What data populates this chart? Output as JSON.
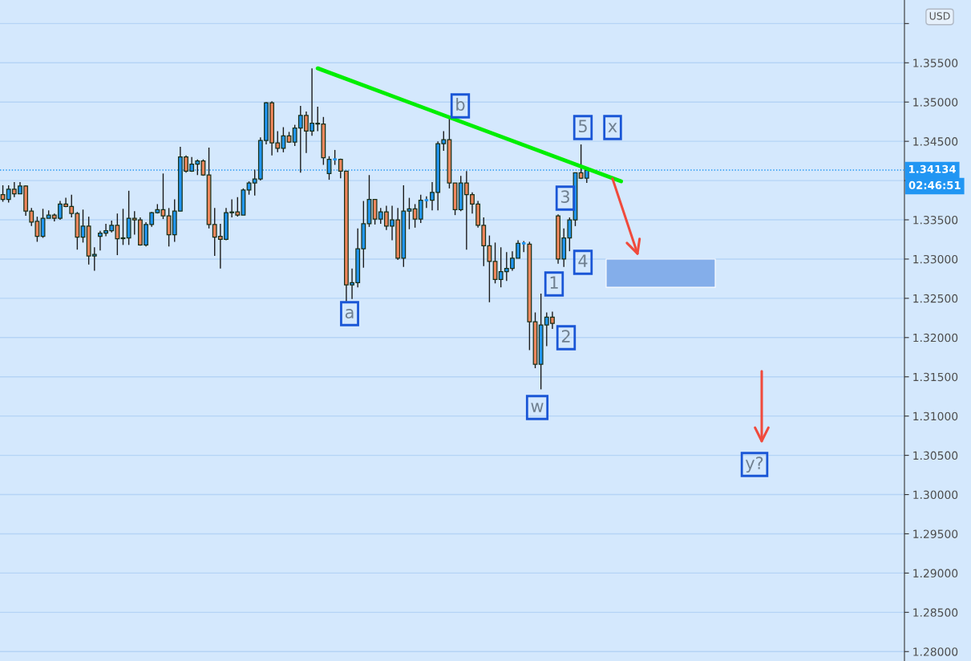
{
  "chart_data": {
    "type": "candlestick",
    "categories": [
      null,
      null,
      null,
      null,
      null,
      null,
      null,
      null,
      null,
      null,
      null,
      null,
      null,
      null,
      null,
      null,
      null,
      null,
      null,
      null,
      null,
      null,
      null,
      null,
      null,
      null,
      null,
      null,
      null,
      null,
      null,
      null,
      null,
      null,
      null,
      null,
      null,
      null,
      null,
      null,
      null,
      null,
      null,
      null,
      null,
      null,
      null,
      null,
      null,
      null,
      null,
      null,
      null,
      null,
      null,
      null,
      null,
      null,
      null,
      null,
      null,
      null,
      null,
      null,
      null,
      null,
      null,
      null,
      null,
      null,
      null,
      null,
      null,
      null,
      null,
      null,
      null,
      null,
      null,
      null,
      null,
      null,
      null,
      null,
      null,
      null,
      null,
      null,
      null,
      null,
      null,
      null,
      null,
      null,
      null,
      null,
      null,
      null,
      null,
      null,
      null,
      null,
      null,
      null,
      null,
      null,
      null,
      null,
      null,
      null,
      null,
      null,
      null,
      null,
      null,
      null,
      null,
      null,
      null,
      null,
      null,
      null,
      null,
      null,
      null,
      null,
      null,
      null,
      null,
      null,
      null,
      null,
      null,
      null,
      null,
      null,
      null,
      null,
      null,
      null,
      null,
      null,
      null,
      null,
      null,
      null,
      null,
      null,
      null,
      null,
      null,
      null,
      null,
      null,
      null,
      null,
      null,
      null
    ],
    "ohlc": [
      [
        1.3382,
        1.3394,
        1.3373,
        1.3376
      ],
      [
        1.3376,
        1.3394,
        1.3372,
        1.3389
      ],
      [
        1.3389,
        1.3398,
        1.3379,
        1.3383
      ],
      [
        1.3383,
        1.3398,
        1.3383,
        1.3393
      ],
      [
        1.3393,
        1.3394,
        1.3355,
        1.3361
      ],
      [
        1.3361,
        1.3365,
        1.3342,
        1.3347
      ],
      [
        1.3348,
        1.3354,
        1.3322,
        1.3329
      ],
      [
        1.3329,
        1.3364,
        1.3327,
        1.3352
      ],
      [
        1.3352,
        1.3362,
        1.3352,
        1.3356
      ],
      [
        1.3356,
        1.3358,
        1.3348,
        1.3352
      ],
      [
        1.3352,
        1.3374,
        1.335,
        1.337
      ],
      [
        1.337,
        1.3378,
        1.3366,
        1.3367
      ],
      [
        1.3367,
        1.3382,
        1.3353,
        1.3358
      ],
      [
        1.3358,
        1.336,
        1.3312,
        1.3328
      ],
      [
        1.3328,
        1.3363,
        1.3321,
        1.3342
      ],
      [
        1.3342,
        1.3354,
        1.3293,
        1.3304
      ],
      [
        1.3304,
        1.3315,
        1.3285,
        1.3306
      ],
      [
        1.3329,
        1.3336,
        1.3311,
        1.3333
      ],
      [
        1.3333,
        1.3345,
        1.3329,
        1.3336
      ],
      [
        1.3336,
        1.3349,
        1.3334,
        1.3343
      ],
      [
        1.3343,
        1.3358,
        1.3305,
        1.3326
      ],
      [
        1.3326,
        1.3364,
        1.3318,
        1.3327
      ],
      [
        1.3327,
        1.3387,
        1.3318,
        1.3352
      ],
      [
        1.3352,
        1.3361,
        1.3331,
        1.335
      ],
      [
        1.335,
        1.3353,
        1.3317,
        1.3318
      ],
      [
        1.3318,
        1.3347,
        1.3316,
        1.3344
      ],
      [
        1.3344,
        1.336,
        1.3341,
        1.3359
      ],
      [
        1.3359,
        1.337,
        1.3358,
        1.3363
      ],
      [
        1.3363,
        1.3409,
        1.3351,
        1.3355
      ],
      [
        1.3355,
        1.3365,
        1.3316,
        1.3331
      ],
      [
        1.3331,
        1.3376,
        1.3322,
        1.3361
      ],
      [
        1.3361,
        1.3443,
        1.3361,
        1.343
      ],
      [
        1.343,
        1.3432,
        1.341,
        1.3412
      ],
      [
        1.3412,
        1.343,
        1.3411,
        1.3421
      ],
      [
        1.3421,
        1.3427,
        1.3407,
        1.3425
      ],
      [
        1.3425,
        1.3427,
        1.3406,
        1.3407
      ],
      [
        1.3407,
        1.3442,
        1.3339,
        1.3344
      ],
      [
        1.3344,
        1.3365,
        1.3304,
        1.3328
      ],
      [
        1.3329,
        1.3345,
        1.3288,
        1.3325
      ],
      [
        1.3325,
        1.3365,
        1.3324,
        1.3359
      ],
      [
        1.3359,
        1.3376,
        1.3353,
        1.336
      ],
      [
        1.336,
        1.3379,
        1.3354,
        1.3356
      ],
      [
        1.3356,
        1.339,
        1.3356,
        1.3388
      ],
      [
        1.3388,
        1.3399,
        1.3382,
        1.3397
      ],
      [
        1.3397,
        1.3414,
        1.3381,
        1.3402
      ],
      [
        1.3402,
        1.3455,
        1.34,
        1.3451
      ],
      [
        1.3451,
        1.35,
        1.3446,
        1.3499
      ],
      [
        1.3499,
        1.3501,
        1.3432,
        1.3448
      ],
      [
        1.3448,
        1.3463,
        1.3436,
        1.3441
      ],
      [
        1.3441,
        1.3468,
        1.3436,
        1.3457
      ],
      [
        1.3457,
        1.3462,
        1.3448,
        1.3449
      ],
      [
        1.3449,
        1.3471,
        1.3444,
        1.3467
      ],
      [
        1.3467,
        1.3495,
        1.341,
        1.3483
      ],
      [
        1.3483,
        1.3488,
        1.3435,
        1.3463
      ],
      [
        1.3463,
        1.3543,
        1.3457,
        1.3473
      ],
      [
        1.3472,
        1.3494,
        1.3463,
        1.3473
      ],
      [
        1.3472,
        1.3481,
        1.342,
        1.3429
      ],
      [
        1.3409,
        1.3431,
        1.3401,
        1.3427
      ],
      [
        1.3427,
        1.3439,
        1.342,
        1.3427
      ],
      [
        1.3427,
        1.3428,
        1.3403,
        1.3412
      ],
      [
        1.3412,
        1.3412,
        1.3246,
        1.3267
      ],
      [
        1.3267,
        1.3288,
        1.3249,
        1.327
      ],
      [
        1.327,
        1.3339,
        1.3264,
        1.3313
      ],
      [
        1.3313,
        1.3374,
        1.3289,
        1.3345
      ],
      [
        1.3345,
        1.3407,
        1.3341,
        1.3376
      ],
      [
        1.3376,
        1.3376,
        1.3344,
        1.3351
      ],
      [
        1.3351,
        1.3365,
        1.3345,
        1.336
      ],
      [
        1.336,
        1.3368,
        1.3337,
        1.3342
      ],
      [
        1.3342,
        1.3368,
        1.3324,
        1.335
      ],
      [
        1.335,
        1.3365,
        1.3299,
        1.3301
      ],
      [
        1.3301,
        1.3394,
        1.329,
        1.3361
      ],
      [
        1.3361,
        1.3378,
        1.3338,
        1.3364
      ],
      [
        1.3364,
        1.337,
        1.334,
        1.3351
      ],
      [
        1.3351,
        1.3382,
        1.3346,
        1.3375
      ],
      [
        1.3375,
        1.338,
        1.3365,
        1.3375
      ],
      [
        1.3375,
        1.3398,
        1.3362,
        1.3385
      ],
      [
        1.3385,
        1.345,
        1.3362,
        1.3447
      ],
      [
        1.3447,
        1.3463,
        1.3438,
        1.3452
      ],
      [
        1.3452,
        1.348,
        1.339,
        1.3397
      ],
      [
        1.3397,
        1.3397,
        1.3356,
        1.3363
      ],
      [
        1.3363,
        1.3406,
        1.3361,
        1.3397
      ],
      [
        1.3397,
        1.3412,
        1.3312,
        1.3382
      ],
      [
        1.3382,
        1.3385,
        1.3358,
        1.337
      ],
      [
        1.337,
        1.3374,
        1.334,
        1.3343
      ],
      [
        1.3343,
        1.3353,
        1.3291,
        1.3317
      ],
      [
        1.3317,
        1.333,
        1.3245,
        1.3297
      ],
      [
        1.3297,
        1.3321,
        1.3269,
        1.3274
      ],
      [
        1.3274,
        1.3315,
        1.3264,
        1.3284
      ],
      [
        1.3284,
        1.3309,
        1.3272,
        1.3288
      ],
      [
        1.3288,
        1.331,
        1.3285,
        1.3301
      ],
      [
        1.3301,
        1.3324,
        1.3301,
        1.332
      ],
      [
        1.332,
        1.3323,
        1.3309,
        1.332
      ],
      [
        1.3319,
        1.3322,
        1.3184,
        1.322
      ],
      [
        1.322,
        1.3232,
        1.3161,
        1.3166
      ],
      [
        1.3166,
        1.3256,
        1.3134,
        1.3216
      ],
      [
        1.3216,
        1.3232,
        1.3189,
        1.3226
      ],
      [
        1.3226,
        1.3233,
        1.3211,
        1.3218
      ],
      [
        1.3355,
        1.3357,
        1.3294,
        1.33
      ],
      [
        1.33,
        1.3339,
        1.329,
        1.3327
      ],
      [
        1.3327,
        1.3353,
        1.331,
        1.335
      ],
      [
        1.335,
        1.341,
        1.3342,
        1.341
      ],
      [
        1.341,
        1.3446,
        1.3402,
        1.3403
      ],
      [
        1.3403,
        1.3416,
        1.3397,
        1.3413
      ],
      null,
      null,
      null,
      null,
      null,
      null,
      null,
      null,
      null,
      null,
      null,
      null,
      null,
      null,
      null,
      null,
      null,
      null,
      null,
      null,
      null,
      null,
      null,
      null,
      null,
      null,
      null,
      null,
      null,
      null,
      null,
      null,
      null,
      null,
      null,
      null,
      null,
      null,
      null,
      null,
      null,
      null,
      null,
      null,
      null,
      null,
      null,
      null,
      null,
      null,
      null,
      null,
      null,
      null,
      null
    ],
    "colors": [
      "#f0865c",
      "#2196f3",
      "#f0865c",
      "#2196f3",
      "#f0865c",
      "#f0865c",
      "#f0865c",
      "#2196f3",
      "#2196f3",
      "#f0865c",
      "#2196f3",
      "#f0865c",
      "#f0865c",
      "#f0865c",
      "#2196f3",
      "#f0865c",
      "#2196f3",
      "#2196f3",
      "#2196f3",
      "#2196f3",
      "#f0865c",
      "#2196f3",
      "#2196f3",
      "#f0865c",
      "#f0865c",
      "#2196f3",
      "#2196f3",
      "#2196f3",
      "#f0865c",
      "#f0865c",
      "#2196f3",
      "#2196f3",
      "#f0865c",
      "#2196f3",
      "#2196f3",
      "#f0865c",
      "#f0865c",
      "#f0865c",
      "#f0865c",
      "#2196f3",
      "#2196f3",
      "#f0865c",
      "#2196f3",
      "#2196f3",
      "#2196f3",
      "#2196f3",
      "#2196f3",
      "#f0865c",
      "#f0865c",
      "#2196f3",
      "#f0865c",
      "#2196f3",
      "#2196f3",
      "#f0865c",
      "#2196f3",
      "#2196f3",
      "#f0865c",
      "#2196f3",
      "#2196f3",
      "#f0865c",
      "#f0865c",
      "#2196f3",
      "#2196f3",
      "#2196f3",
      "#2196f3",
      "#f0865c",
      "#2196f3",
      "#f0865c",
      "#2196f3",
      "#f0865c",
      "#2196f3",
      "#2196f3",
      "#f0865c",
      "#2196f3",
      "#2196f3",
      "#2196f3",
      "#2196f3",
      "#2196f3",
      "#f0865c",
      "#f0865c",
      "#2196f3",
      "#f0865c",
      "#f0865c",
      "#f0865c",
      "#f0865c",
      "#f0865c",
      "#f0865c",
      "#2196f3",
      "#2196f3",
      "#2196f3",
      "#2196f3",
      "#2196f3",
      "#f0865c",
      "#f0865c",
      "#2196f3",
      "#2196f3",
      "#f0865c",
      "#f0865c",
      "#2196f3",
      "#2196f3",
      "#2196f3",
      "#f0865c",
      "#2196f3",
      null,
      null,
      null,
      null,
      null,
      null,
      null,
      null,
      null,
      null,
      null,
      null,
      null,
      null,
      null,
      null,
      null,
      null,
      null,
      null,
      null,
      null,
      null,
      null,
      null,
      null,
      null,
      null,
      null,
      null,
      null,
      null,
      null,
      null,
      null,
      null,
      null,
      null,
      null,
      null,
      null,
      null,
      null,
      null,
      null,
      null,
      null,
      null,
      null,
      null,
      null,
      null,
      null,
      null,
      null
    ],
    "series": [
      {
        "type": "line",
        "color": "#00ee00",
        "values": [
          null,
          null,
          null,
          null,
          null,
          null,
          null,
          null,
          null,
          null,
          null,
          null,
          null,
          null,
          null,
          null,
          null,
          null,
          null,
          null,
          null,
          null,
          null,
          null,
          null,
          null,
          null,
          null,
          null,
          null,
          null,
          null,
          null,
          null,
          null,
          null,
          null,
          null,
          null,
          null,
          null,
          null,
          null,
          null,
          null,
          null,
          null,
          null,
          null,
          null,
          null,
          null,
          null,
          null,
          null,
          1.3543,
          null,
          null,
          null,
          null,
          null,
          null,
          null,
          null,
          null,
          null,
          null,
          null,
          null,
          null,
          null,
          null,
          null,
          null,
          null,
          null,
          null,
          null,
          null,
          null,
          null,
          null,
          null,
          null,
          null,
          null,
          null,
          null,
          null,
          null,
          null,
          null,
          null,
          null,
          null,
          null,
          null,
          null,
          null,
          null,
          null,
          null,
          null,
          null,
          null,
          null,
          null,
          null,
          1.3399,
          null,
          null,
          null,
          null,
          null,
          null,
          null,
          null,
          null,
          null,
          null,
          null,
          null,
          null,
          null,
          null,
          null,
          null,
          null,
          null,
          null,
          null,
          null,
          null,
          null,
          null,
          null,
          null,
          null,
          null,
          null,
          null,
          null,
          null,
          null,
          null,
          null,
          null,
          null,
          null,
          null,
          null,
          null,
          null,
          null,
          null,
          null,
          null,
          null
        ]
      }
    ],
    "ylim": [
      1.2788,
      1.363
    ],
    "yticks": [
      {
        "value": 1.28,
        "label": "1.28000"
      },
      {
        "value": 1.285,
        "label": "1.28500"
      },
      {
        "value": 1.29,
        "label": "1.29000"
      },
      {
        "value": 1.295,
        "label": "1.29500"
      },
      {
        "value": 1.3,
        "label": "1.30000"
      },
      {
        "value": 1.305,
        "label": "1.30500"
      },
      {
        "value": 1.31,
        "label": "1.31000"
      },
      {
        "value": 1.315,
        "label": "1.31500"
      },
      {
        "value": 1.32,
        "label": "1.32000"
      },
      {
        "value": 1.325,
        "label": "1.32500"
      },
      {
        "value": 1.33,
        "label": "1.33000"
      },
      {
        "value": 1.335,
        "label": "1.33500"
      },
      {
        "value": 1.34,
        "label": null
      },
      {
        "value": 1.345,
        "label": "1.34500"
      },
      {
        "value": 1.35,
        "label": "1.35000"
      },
      {
        "value": 1.355,
        "label": "1.35500"
      },
      {
        "value": 1.36,
        "label": null
      }
    ],
    "tick_labels": "y",
    "grid": "y",
    "ref_lines": [
      {
        "axis": "y",
        "value": 1.34134,
        "label": "1.34134",
        "color": "#2196f3",
        "line_style": "dotted"
      }
    ],
    "bands": [
      {
        "axis": "y",
        "from": 1.3264,
        "to": 1.33,
        "color": "#84aeea"
      }
    ],
    "annotations": [
      "a",
      "b",
      "1",
      "2",
      "3",
      "4",
      "5",
      "x",
      "w",
      "y?",
      "USD",
      "02:46:51"
    ]
  }
}
